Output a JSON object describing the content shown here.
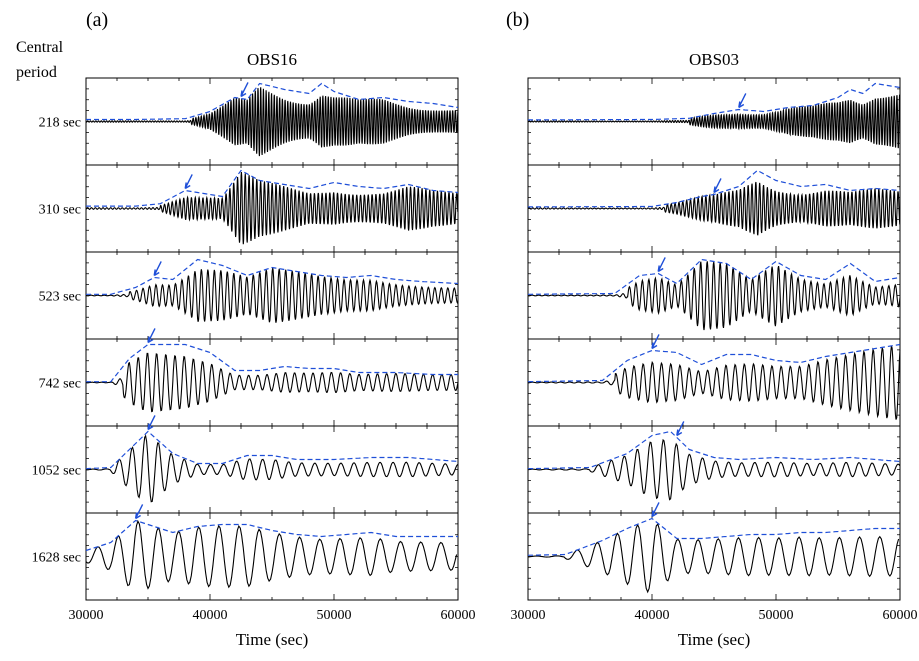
{
  "figure": {
    "row_header": [
      "Central",
      "period"
    ],
    "xlabel": "Time (sec)",
    "colors": {
      "trace": "#000000",
      "envelope": "#1f4fd8",
      "arrow": "#1f4fd8"
    }
  },
  "chart_data": [
    {
      "type": "line",
      "panel_label": "(a)",
      "title": "OBS16",
      "xlabel": "Time (sec)",
      "xlim": [
        30000,
        60000
      ],
      "xticks": [
        30000,
        40000,
        50000,
        60000
      ],
      "row_labels": [
        "218 sec",
        "310 sec",
        "523 sec",
        "742 sec",
        "1052 sec",
        "1628 sec"
      ],
      "series": [
        {
          "name": "218 sec",
          "period": 218,
          "onset": 38500,
          "arrival": 42500,
          "envelope": {
            "x": [
              30000,
              34000,
              38000,
              40000,
              42000,
              43000,
              44000,
              46000,
              48000,
              49000,
              50000,
              52000,
              54000,
              56000,
              58000,
              60000
            ],
            "y": [
              0.05,
              0.05,
              0.07,
              0.25,
              0.6,
              0.55,
              0.95,
              0.8,
              0.7,
              0.95,
              0.75,
              0.55,
              0.6,
              0.5,
              0.45,
              0.35
            ]
          }
        },
        {
          "name": "310 sec",
          "period": 310,
          "onset": 36000,
          "arrival": 38000,
          "envelope": {
            "x": [
              30000,
              34000,
              36000,
              38000,
              40000,
              41000,
              42500,
              44000,
              46000,
              48000,
              50000,
              52000,
              54000,
              56000,
              58000,
              60000
            ],
            "y": [
              0.06,
              0.06,
              0.12,
              0.45,
              0.35,
              0.3,
              0.95,
              0.7,
              0.6,
              0.5,
              0.65,
              0.55,
              0.5,
              0.6,
              0.45,
              0.4
            ]
          }
        },
        {
          "name": "523 sec",
          "period": 523,
          "onset": 33500,
          "arrival": 35500,
          "envelope": {
            "x": [
              30000,
              32000,
              34000,
              35500,
              37000,
              39000,
              41000,
              43000,
              45000,
              47000,
              49000,
              51000,
              53000,
              55000,
              57000,
              60000
            ],
            "y": [
              0.03,
              0.03,
              0.2,
              0.45,
              0.4,
              0.9,
              0.75,
              0.5,
              0.7,
              0.6,
              0.5,
              0.45,
              0.5,
              0.4,
              0.35,
              0.3
            ]
          }
        },
        {
          "name": "742 sec",
          "period": 742,
          "onset": 33000,
          "arrival": 35000,
          "envelope": {
            "x": [
              30000,
              32000,
              33500,
              35000,
              36500,
              38000,
              40000,
              42000,
              44000,
              46000,
              48000,
              50000,
              52000,
              55000,
              58000,
              60000
            ],
            "y": [
              0.02,
              0.02,
              0.6,
              0.95,
              0.95,
              0.95,
              0.75,
              0.3,
              0.3,
              0.4,
              0.35,
              0.35,
              0.25,
              0.25,
              0.2,
              0.2
            ]
          }
        },
        {
          "name": "1052 sec",
          "period": 1052,
          "onset": 32000,
          "arrival": 35000,
          "envelope": {
            "x": [
              30000,
              32000,
              33500,
              35000,
              37000,
              39000,
              41000,
              43000,
              45000,
              47000,
              50000,
              53000,
              56000,
              58000,
              60000
            ],
            "y": [
              0.02,
              0.05,
              0.5,
              0.95,
              0.4,
              0.15,
              0.15,
              0.35,
              0.35,
              0.25,
              0.25,
              0.3,
              0.3,
              0.25,
              0.2
            ]
          }
        },
        {
          "name": "1628 sec",
          "period": 1628,
          "onset": 30000,
          "arrival": 34000,
          "envelope": {
            "x": [
              30000,
              32000,
              34000,
              35500,
              37000,
              39000,
              41000,
              43000,
              45000,
              47000,
              49000,
              51000,
              53000,
              55000,
              57000,
              60000
            ],
            "y": [
              0.15,
              0.35,
              0.9,
              0.75,
              0.6,
              0.75,
              0.8,
              0.8,
              0.65,
              0.55,
              0.5,
              0.55,
              0.6,
              0.5,
              0.5,
              0.5
            ]
          }
        }
      ]
    },
    {
      "type": "line",
      "panel_label": "(b)",
      "title": "OBS03",
      "xlabel": "Time (sec)",
      "xlim": [
        30000,
        60000
      ],
      "xticks": [
        30000,
        40000,
        50000,
        60000
      ],
      "row_labels": [
        "218 sec",
        "310 sec",
        "523 sec",
        "742 sec",
        "1052 sec",
        "1628 sec"
      ],
      "series": [
        {
          "name": "218 sec",
          "period": 218,
          "onset": 43000,
          "arrival": 47000,
          "envelope": {
            "x": [
              30000,
              40000,
              43000,
              45000,
              47000,
              49000,
              51000,
              53000,
              55000,
              56000,
              57000,
              58000,
              59000,
              60000
            ],
            "y": [
              0.04,
              0.05,
              0.08,
              0.2,
              0.3,
              0.25,
              0.35,
              0.4,
              0.6,
              0.8,
              0.7,
              0.95,
              0.9,
              0.85
            ]
          }
        },
        {
          "name": "310 sec",
          "period": 310,
          "onset": 41000,
          "arrival": 45000,
          "envelope": {
            "x": [
              30000,
              40000,
              42000,
              44000,
              45000,
              47000,
              48500,
              50000,
              52000,
              54000,
              56000,
              58000,
              60000
            ],
            "y": [
              0.04,
              0.05,
              0.15,
              0.3,
              0.35,
              0.55,
              0.95,
              0.7,
              0.55,
              0.6,
              0.45,
              0.5,
              0.45
            ]
          }
        },
        {
          "name": "523 sec",
          "period": 523,
          "onset": 38000,
          "arrival": 40500,
          "envelope": {
            "x": [
              30000,
              37000,
              39000,
              40500,
              42000,
              44000,
              46000,
              48000,
              50000,
              52000,
              54000,
              56000,
              58000,
              60000
            ],
            "y": [
              0.03,
              0.05,
              0.5,
              0.55,
              0.3,
              0.9,
              0.8,
              0.4,
              0.85,
              0.5,
              0.4,
              0.8,
              0.35,
              0.45
            ]
          }
        },
        {
          "name": "742 sec",
          "period": 742,
          "onset": 37000,
          "arrival": 40000,
          "envelope": {
            "x": [
              30000,
              36000,
              38000,
              40000,
              42000,
              44000,
              46000,
              48000,
              50000,
              52000,
              54000,
              56000,
              58000,
              60000
            ],
            "y": [
              0.02,
              0.05,
              0.55,
              0.8,
              0.75,
              0.45,
              0.7,
              0.7,
              0.55,
              0.5,
              0.65,
              0.75,
              0.85,
              0.95
            ]
          }
        },
        {
          "name": "1052 sec",
          "period": 1052,
          "onset": 35000,
          "arrival": 42000,
          "envelope": {
            "x": [
              30000,
              35000,
              38000,
              40000,
              41500,
              43000,
              45000,
              47000,
              50000,
              53000,
              56000,
              58000,
              60000
            ],
            "y": [
              0.02,
              0.05,
              0.4,
              0.85,
              0.95,
              0.5,
              0.3,
              0.25,
              0.3,
              0.25,
              0.3,
              0.25,
              0.2
            ]
          }
        },
        {
          "name": "1628 sec",
          "period": 1628,
          "onset": 33000,
          "arrival": 40000,
          "envelope": {
            "x": [
              30000,
              33000,
              36000,
              38000,
              40000,
              42000,
              44000,
              46000,
              48000,
              50000,
              52000,
              54000,
              56000,
              58000,
              60000
            ],
            "y": [
              0.03,
              0.05,
              0.4,
              0.7,
              0.95,
              0.45,
              0.45,
              0.5,
              0.55,
              0.55,
              0.6,
              0.6,
              0.65,
              0.7,
              0.7
            ]
          }
        }
      ]
    }
  ]
}
